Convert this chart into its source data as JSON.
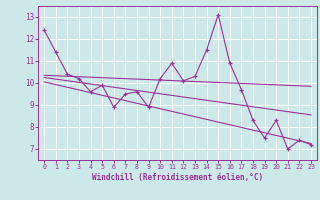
{
  "xlabel": "Windchill (Refroidissement éolien,°C)",
  "bg_color": "#cce8e8",
  "grid_color": "#ffffff",
  "line_color": "#993399",
  "xlim": [
    -0.5,
    23.5
  ],
  "ylim": [
    6.5,
    13.5
  ],
  "yticks": [
    7,
    8,
    9,
    10,
    11,
    12,
    13
  ],
  "xticks": [
    0,
    1,
    2,
    3,
    4,
    5,
    6,
    7,
    8,
    9,
    10,
    11,
    12,
    13,
    14,
    15,
    16,
    17,
    18,
    19,
    20,
    21,
    22,
    23
  ],
  "series_x": [
    0,
    1,
    2,
    3,
    4,
    5,
    6,
    7,
    8,
    9,
    10,
    11,
    12,
    13,
    14,
    15,
    16,
    17,
    18,
    19,
    20,
    21,
    22,
    23
  ],
  "series_y": [
    12.4,
    11.4,
    10.4,
    10.2,
    9.6,
    9.9,
    8.9,
    9.5,
    9.6,
    8.9,
    10.2,
    10.9,
    10.1,
    10.3,
    11.5,
    13.1,
    10.9,
    9.7,
    8.3,
    7.5,
    8.3,
    7.0,
    7.4,
    7.2
  ],
  "regression_lines": [
    {
      "x": [
        0,
        23
      ],
      "y": [
        10.35,
        9.85
      ]
    },
    {
      "x": [
        0,
        23
      ],
      "y": [
        10.25,
        8.55
      ]
    },
    {
      "x": [
        0,
        23
      ],
      "y": [
        10.05,
        7.25
      ]
    }
  ]
}
